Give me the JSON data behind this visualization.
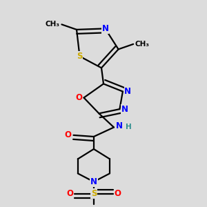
{
  "bg_color": "#dcdcdc",
  "bond_color": "#000000",
  "bond_width": 1.6,
  "atom_colors": {
    "N": "#0000ff",
    "S": "#ccaa00",
    "O": "#ff0000",
    "H": "#2f8f8f",
    "C": "#000000"
  },
  "fs": 8.5,
  "fs_small": 7.5
}
